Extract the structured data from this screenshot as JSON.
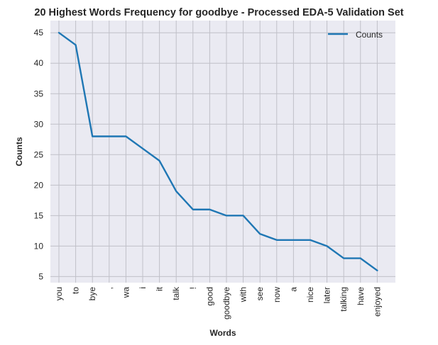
{
  "chart_data": {
    "type": "line",
    "title": "20 Highest Words Frequency for goodbye - Processed EDA-5 Validation Set",
    "xlabel": "Words",
    "ylabel": "Counts",
    "categories": [
      "you",
      "to",
      "bye",
      ",",
      "wa",
      "i",
      "it",
      "talk",
      "!",
      "good",
      "goodbye",
      "with",
      "see",
      "now",
      "a",
      "nice",
      "later",
      "talking",
      "have",
      "enjoyed"
    ],
    "series": [
      {
        "name": "Counts",
        "values": [
          45,
          43,
          28,
          28,
          28,
          26,
          24,
          19,
          16,
          16,
          15,
          15,
          12,
          11,
          11,
          11,
          10,
          8,
          8,
          6
        ]
      }
    ],
    "ylim": [
      4,
      47
    ],
    "yticks": [
      5,
      10,
      15,
      20,
      25,
      30,
      35,
      40,
      45
    ],
    "grid": true,
    "legend": "top-right",
    "colors": {
      "line": "#1f77b4",
      "plot_bg": "#eaeaf2",
      "grid": "#c0c0c8"
    }
  }
}
